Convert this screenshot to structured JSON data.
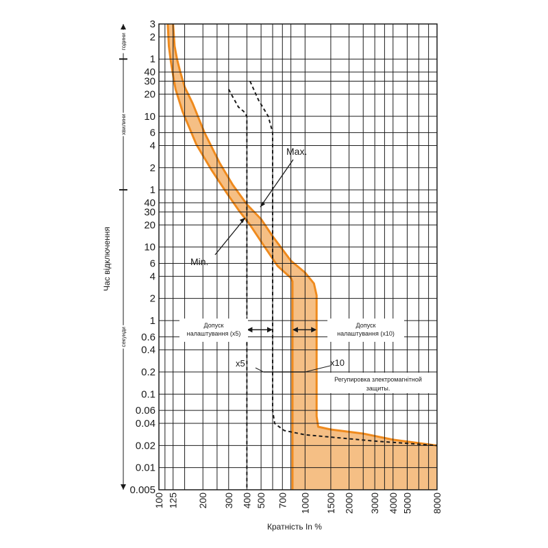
{
  "chart_data": {
    "type": "line",
    "xlabel": "Кратність In %",
    "ylabel": "Час відключення",
    "x_scale": "log",
    "y_scale": "log",
    "x_ticks": [
      100,
      125,
      200,
      300,
      400,
      500,
      700,
      1000,
      1500,
      2000,
      3000,
      4000,
      5000,
      8000
    ],
    "y_ticks": [
      {
        "label": "3",
        "seconds": 10800
      },
      {
        "label": "2",
        "seconds": 7200
      },
      {
        "label": "1",
        "seconds": 3600
      },
      {
        "label": "40",
        "seconds": 2400
      },
      {
        "label": "30",
        "seconds": 1800
      },
      {
        "label": "20",
        "seconds": 1200
      },
      {
        "label": "10",
        "seconds": 600
      },
      {
        "label": "6",
        "seconds": 360
      },
      {
        "label": "4",
        "seconds": 240
      },
      {
        "label": "2",
        "seconds": 120
      },
      {
        "label": "1",
        "seconds": 60
      },
      {
        "label": "40",
        "seconds": 40
      },
      {
        "label": "30",
        "seconds": 30
      },
      {
        "label": "20",
        "seconds": 20
      },
      {
        "label": "10",
        "seconds": 10
      },
      {
        "label": "6",
        "seconds": 6
      },
      {
        "label": "4",
        "seconds": 4
      },
      {
        "label": "2",
        "seconds": 2
      },
      {
        "label": "1",
        "seconds": 1
      },
      {
        "label": "0.6",
        "seconds": 0.6
      },
      {
        "label": "0.4",
        "seconds": 0.4
      },
      {
        "label": "0.2",
        "seconds": 0.2
      },
      {
        "label": "0.1",
        "seconds": 0.1
      },
      {
        "label": "0.06",
        "seconds": 0.06
      },
      {
        "label": "0.04",
        "seconds": 0.04
      },
      {
        "label": "0.02",
        "seconds": 0.02
      },
      {
        "label": "0.01",
        "seconds": 0.01
      },
      {
        "label": "0.005",
        "seconds": 0.005
      }
    ],
    "x_lines": [
      100,
      110,
      125,
      150,
      200,
      250,
      300,
      400,
      500,
      600,
      700,
      800,
      1000,
      1500,
      2000,
      2500,
      3000,
      3500,
      4000,
      5000,
      6000,
      7000,
      8000
    ],
    "time_units": [
      {
        "label": "години",
        "from_s": 3600,
        "to_s": 10800
      },
      {
        "label": "хвилини",
        "from_s": 60,
        "to_s": 3600
      },
      {
        "label": "секунди",
        "from_s": 0.005,
        "to_s": 60
      }
    ],
    "series": [
      {
        "name": "Max.",
        "points": [
          [
            125,
            10800
          ],
          [
            128,
            5400
          ],
          [
            133,
            3600
          ],
          [
            140,
            2400
          ],
          [
            150,
            1500
          ],
          [
            170,
            900
          ],
          [
            205,
            360
          ],
          [
            260,
            140
          ],
          [
            320,
            70
          ],
          [
            400,
            38
          ],
          [
            500,
            24
          ],
          [
            600,
            14
          ],
          [
            800,
            6.5
          ],
          [
            1000,
            4.5
          ],
          [
            1150,
            3.2
          ],
          [
            1200,
            2.2
          ],
          [
            1200,
            0.05
          ],
          [
            1230,
            0.036
          ],
          [
            1500,
            0.033
          ],
          [
            2500,
            0.029
          ],
          [
            4000,
            0.024
          ],
          [
            8000,
            0.02
          ]
        ]
      },
      {
        "name": "Min.",
        "points": [
          [
            115,
            10800
          ],
          [
            117,
            5400
          ],
          [
            120,
            3600
          ],
          [
            124,
            2400
          ],
          [
            130,
            1400
          ],
          [
            145,
            700
          ],
          [
            180,
            250
          ],
          [
            230,
            110
          ],
          [
            290,
            55
          ],
          [
            350,
            32
          ],
          [
            420,
            20
          ],
          [
            530,
            10
          ],
          [
            650,
            5.5
          ],
          [
            800,
            3.8
          ],
          [
            820,
            3.4
          ],
          [
            820,
            0.005
          ]
        ]
      },
      {
        "name": "",
        "style": "dashed",
        "points": [
          [
            300,
            1400
          ],
          [
            320,
            1100
          ],
          [
            350,
            800
          ],
          [
            380,
            700
          ],
          [
            400,
            600
          ],
          [
            400,
            0.005
          ]
        ]
      },
      {
        "name": "",
        "style": "dashed",
        "points": [
          [
            420,
            1800
          ],
          [
            480,
            1000
          ],
          [
            560,
            600
          ],
          [
            600,
            360
          ],
          [
            600,
            0.06
          ],
          [
            620,
            0.04
          ],
          [
            720,
            0.032
          ],
          [
            1000,
            0.028
          ],
          [
            1500,
            0.026
          ],
          [
            3000,
            0.023
          ],
          [
            8000,
            0.02
          ]
        ]
      }
    ],
    "annotations": [
      {
        "text": "Max."
      },
      {
        "text": "Min."
      },
      {
        "text": "x5"
      },
      {
        "text": "x10"
      }
    ],
    "notes": {
      "left_line1": "Допуск",
      "left_line2": "налаштування (x5)",
      "right_line1": "Допуск",
      "right_line2": "налаштування (x10)",
      "reg_line1": "Регупировка злектромагнітной",
      "reg_line2": "защиты."
    },
    "colors": {
      "band_fill": "#f5bf85",
      "band_stroke": "#ef8a1d",
      "grid": "#1a1a1a",
      "dashed": "#1a1a1a"
    }
  }
}
